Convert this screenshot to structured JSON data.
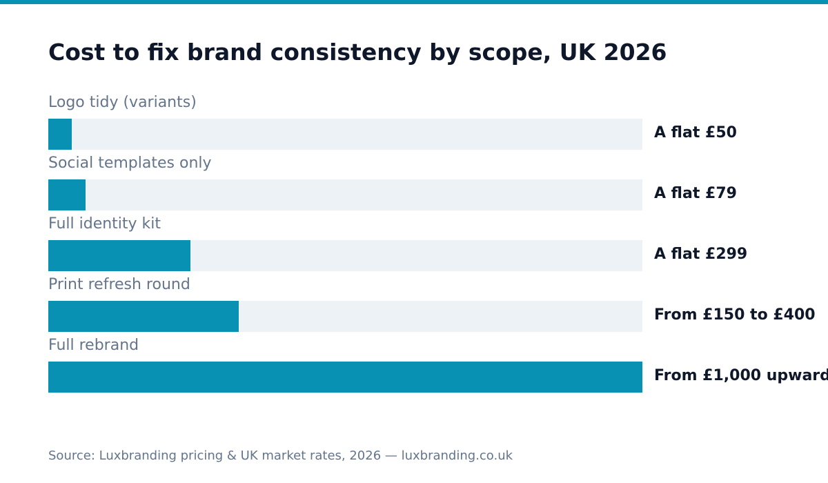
{
  "colors": {
    "accent": "#0891b2",
    "track": "#edf2f7",
    "title": "#0f172a",
    "muted": "#64748b"
  },
  "chart_data": {
    "type": "bar",
    "orientation": "horizontal",
    "title": "Cost to fix brand consistency by scope, UK 2026",
    "categories": [
      "Logo tidy (variants)",
      "Social templates only",
      "Full identity kit",
      "Print refresh round",
      "Full rebrand"
    ],
    "values": [
      50,
      79,
      299,
      400,
      1000
    ],
    "value_labels": [
      "A flat £50",
      "A flat £79",
      "A flat £299",
      "From £150 to £400",
      "From £1,000 upward"
    ],
    "xlim": [
      0,
      1250
    ],
    "grid": false,
    "legend": "none"
  },
  "footer": {
    "source": "Source: Luxbranding pricing & UK market rates, 2026 — luxbranding.co.uk"
  }
}
